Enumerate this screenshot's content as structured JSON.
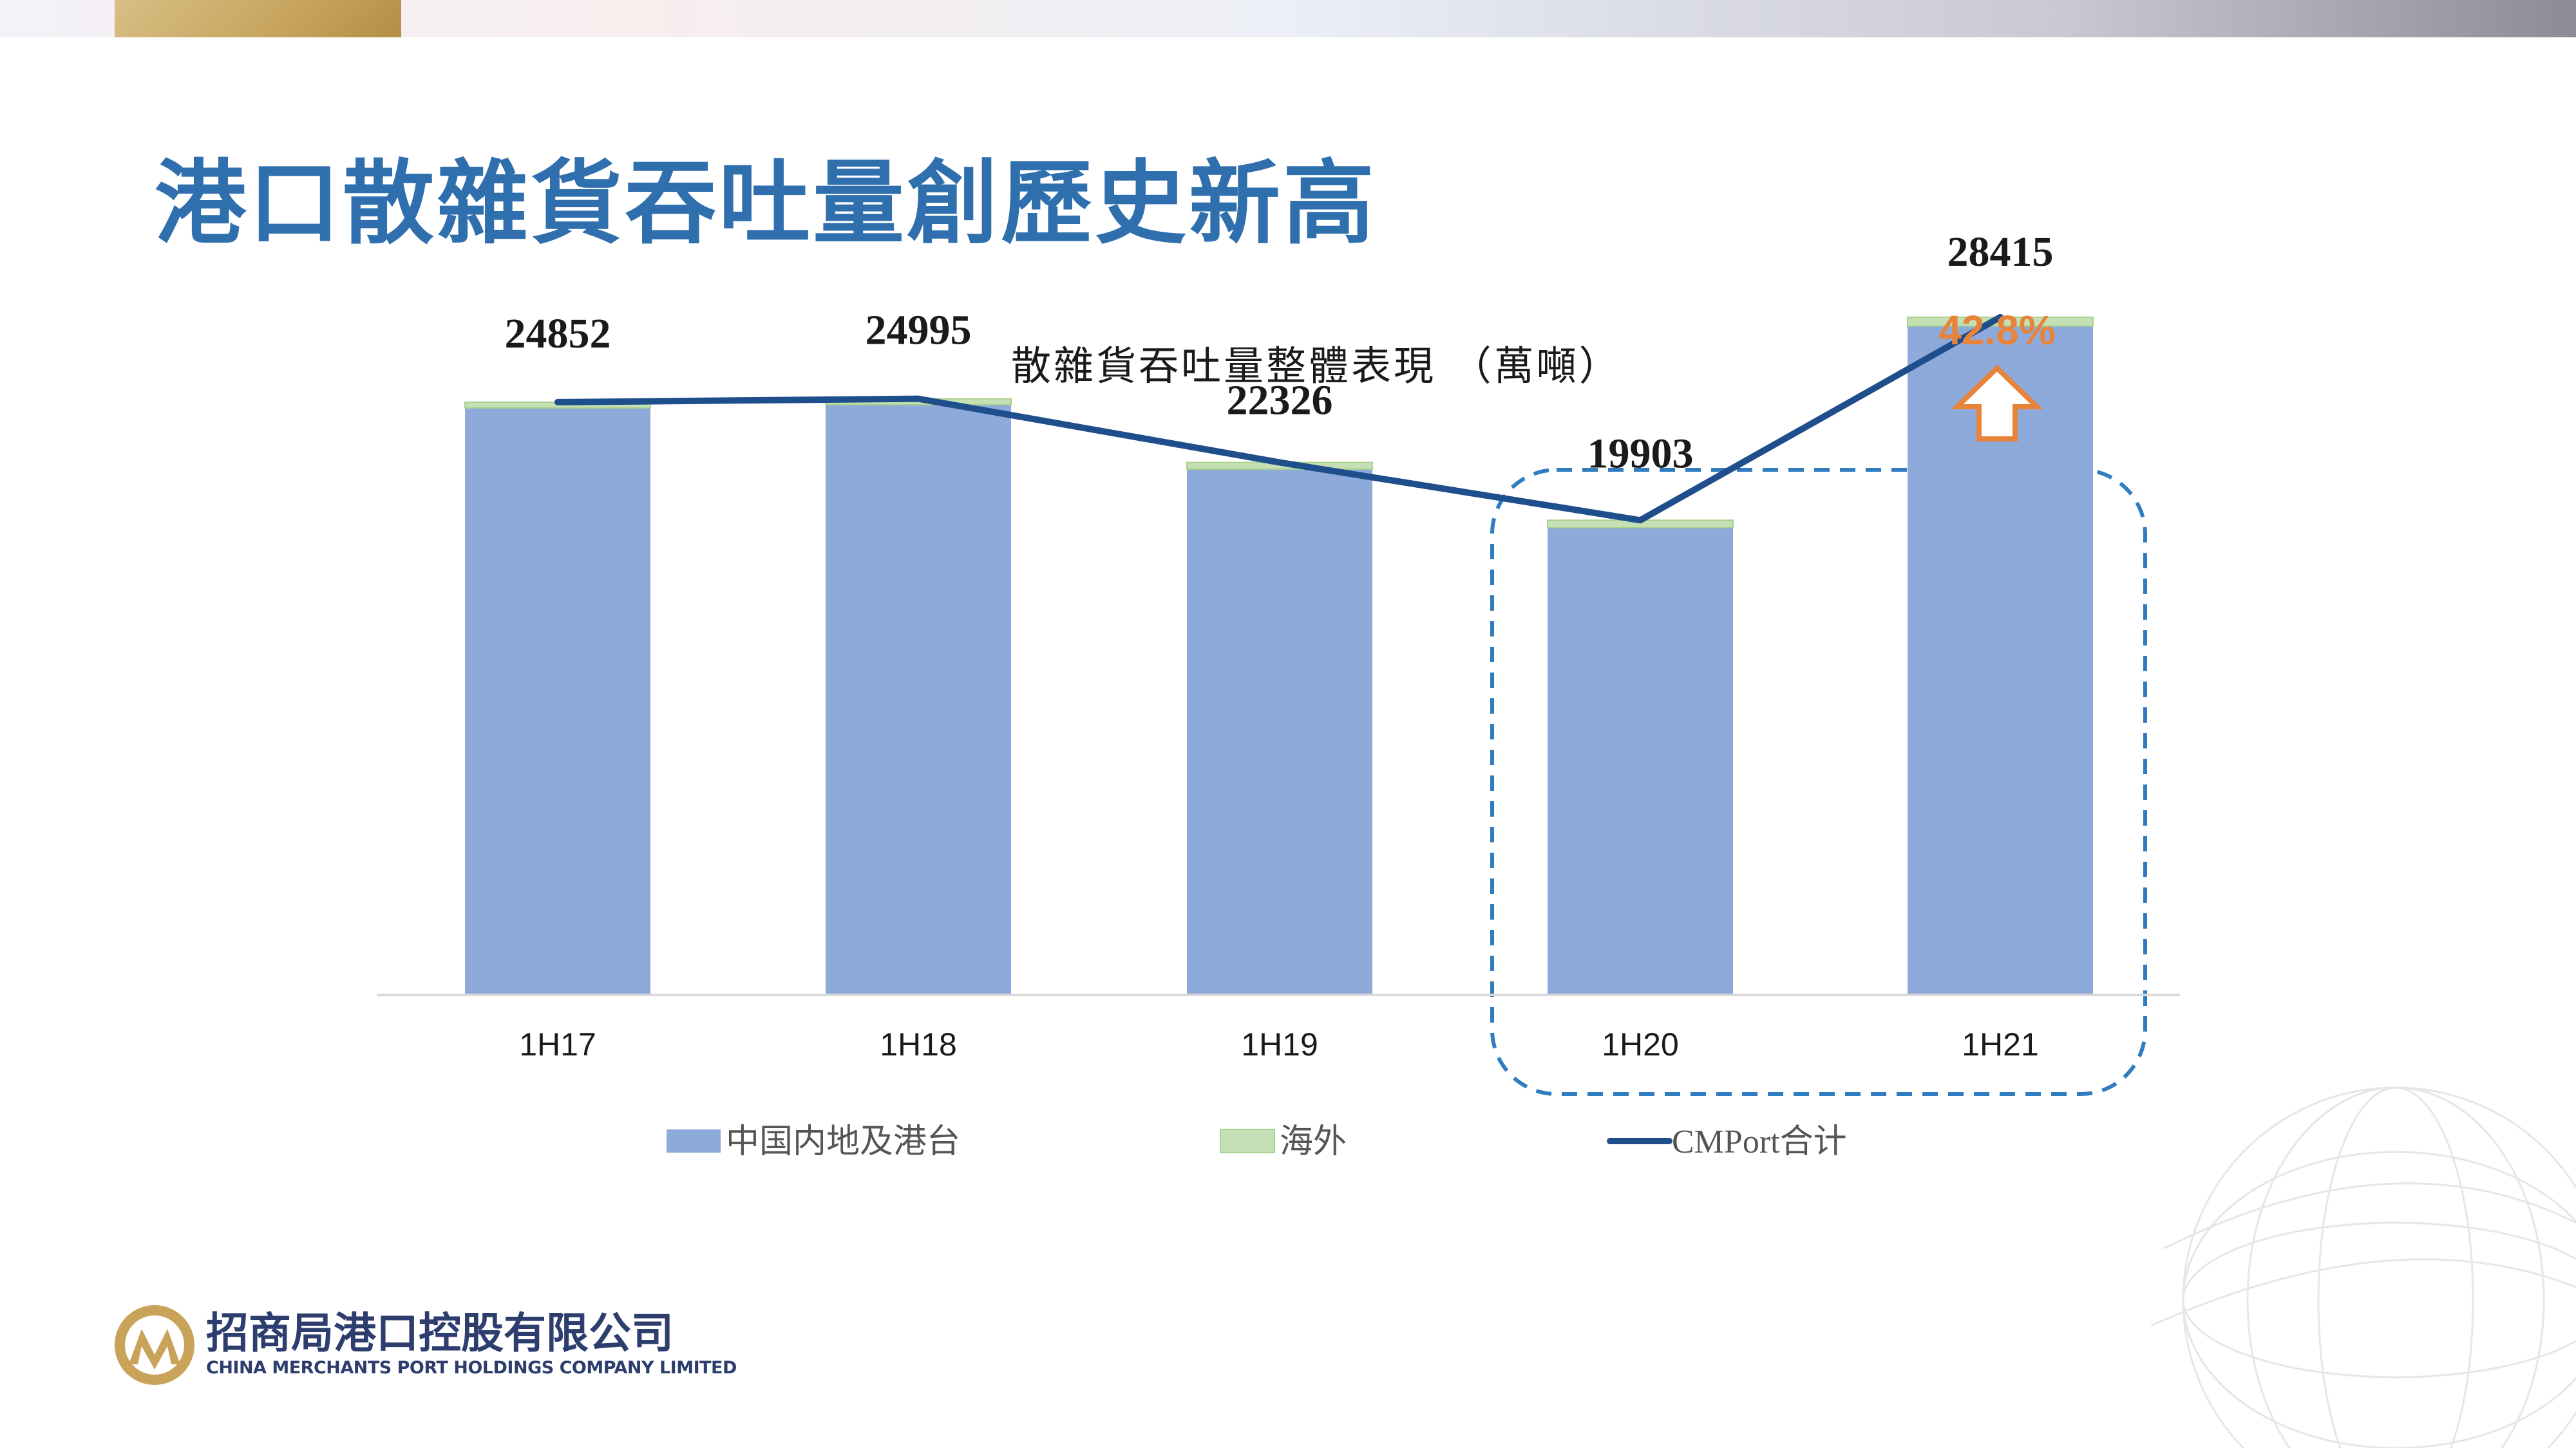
{
  "page": {
    "title": "港口散雜貨吞吐量創歷史新高"
  },
  "chart_data": {
    "type": "bar",
    "title": "散雜貨吞吐量整體表現 （萬噸）",
    "categories": [
      "1H17",
      "1H18",
      "1H19",
      "1H20",
      "1H21"
    ],
    "series": [
      {
        "name": "中国内地及港台",
        "type": "bar",
        "stack": "total",
        "values": [
          24612,
          24745,
          22046,
          19593,
          28045
        ],
        "color": "#8eaadb"
      },
      {
        "name": "海外",
        "type": "bar",
        "stack": "total",
        "values": [
          240,
          250,
          280,
          310,
          370
        ],
        "color": "#c5e0b4"
      },
      {
        "name": "CMPort合计",
        "type": "line",
        "values": [
          24852,
          24995,
          22326,
          19903,
          28415
        ],
        "color": "#1f4e8c"
      }
    ],
    "data_labels": [
      "24852",
      "24995",
      "22326",
      "19903",
      "28415"
    ],
    "ylim": [
      0,
      32000
    ],
    "legend_position": "bottom",
    "annotation": {
      "text": "42.8%",
      "category": "1H21",
      "direction": "up",
      "color": "#e8833a"
    },
    "highlight_categories": [
      "1H20",
      "1H21"
    ],
    "highlight_color": "#2f7cc1"
  },
  "footer": {
    "logo_cn": "招商局港口控股有限公司",
    "logo_en": "CHINA MERCHANTS PORT HOLDINGS COMPANY LIMITED"
  }
}
